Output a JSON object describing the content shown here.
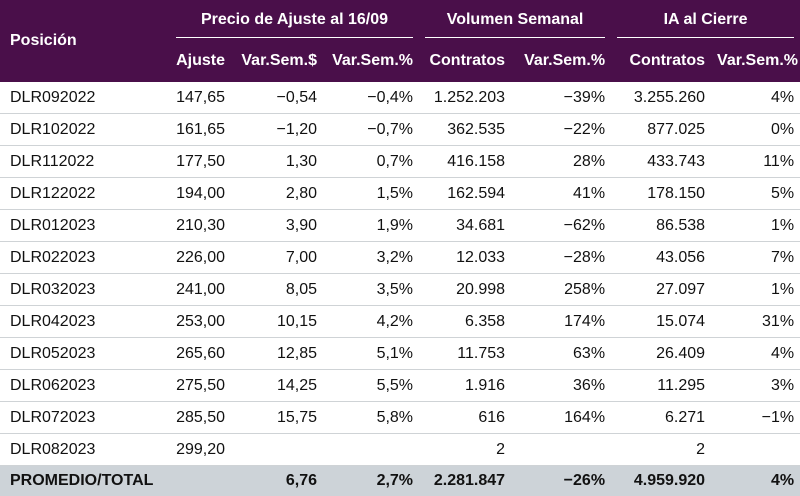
{
  "colors": {
    "header_bg": "#4a0f4a",
    "positive": "#1f9b1f",
    "negative": "#d8122a",
    "total_bg": "#cdd3d8"
  },
  "header": {
    "posicion": "Posición",
    "groups": {
      "precio": "Precio de Ajuste al 16/09",
      "volumen": "Volumen Semanal",
      "ia": "IA al Cierre"
    },
    "sub": {
      "ajuste": "Ajuste",
      "var_pesos": "Var.Sem.$",
      "var_pct_precio": "Var.Sem.%",
      "contratos_vol": "Contratos",
      "var_pct_vol": "Var.Sem.%",
      "contratos_ia": "Contratos",
      "var_pct_ia": "Var.Sem.%"
    }
  },
  "rows": [
    {
      "name": "DLR092022",
      "ajuste": "147,65",
      "var_pesos": "-0,54",
      "var_pct": "-0,4%",
      "vol_contratos": "1.252.203",
      "vol_var": "-39%",
      "ia_contratos": "3.255.260",
      "ia_var": "4%"
    },
    {
      "name": "DLR102022",
      "ajuste": "161,65",
      "var_pesos": "-1,20",
      "var_pct": "-0,7%",
      "vol_contratos": "362.535",
      "vol_var": "-22%",
      "ia_contratos": "877.025",
      "ia_var": "0%"
    },
    {
      "name": "DLR112022",
      "ajuste": "177,50",
      "var_pesos": "1,30",
      "var_pct": "0,7%",
      "vol_contratos": "416.158",
      "vol_var": "28%",
      "ia_contratos": "433.743",
      "ia_var": "11%"
    },
    {
      "name": "DLR122022",
      "ajuste": "194,00",
      "var_pesos": "2,80",
      "var_pct": "1,5%",
      "vol_contratos": "162.594",
      "vol_var": "41%",
      "ia_contratos": "178.150",
      "ia_var": "5%"
    },
    {
      "name": "DLR012023",
      "ajuste": "210,30",
      "var_pesos": "3,90",
      "var_pct": "1,9%",
      "vol_contratos": "34.681",
      "vol_var": "-62%",
      "ia_contratos": "86.538",
      "ia_var": "1%"
    },
    {
      "name": "DLR022023",
      "ajuste": "226,00",
      "var_pesos": "7,00",
      "var_pct": "3,2%",
      "vol_contratos": "12.033",
      "vol_var": "-28%",
      "ia_contratos": "43.056",
      "ia_var": "7%"
    },
    {
      "name": "DLR032023",
      "ajuste": "241,00",
      "var_pesos": "8,05",
      "var_pct": "3,5%",
      "vol_contratos": "20.998",
      "vol_var": "258%",
      "ia_contratos": "27.097",
      "ia_var": "1%"
    },
    {
      "name": "DLR042023",
      "ajuste": "253,00",
      "var_pesos": "10,15",
      "var_pct": "4,2%",
      "vol_contratos": "6.358",
      "vol_var": "174%",
      "ia_contratos": "15.074",
      "ia_var": "31%"
    },
    {
      "name": "DLR052023",
      "ajuste": "265,60",
      "var_pesos": "12,85",
      "var_pct": "5,1%",
      "vol_contratos": "11.753",
      "vol_var": "63%",
      "ia_contratos": "26.409",
      "ia_var": "4%"
    },
    {
      "name": "DLR062023",
      "ajuste": "275,50",
      "var_pesos": "14,25",
      "var_pct": "5,5%",
      "vol_contratos": "1.916",
      "vol_var": "36%",
      "ia_contratos": "11.295",
      "ia_var": "3%"
    },
    {
      "name": "DLR072023",
      "ajuste": "285,50",
      "var_pesos": "15,75",
      "var_pct": "5,8%",
      "vol_contratos": "616",
      "vol_var": "164%",
      "ia_contratos": "6.271",
      "ia_var": "-1%"
    },
    {
      "name": "DLR082023",
      "ajuste": "299,20",
      "var_pesos": "",
      "var_pct": "",
      "vol_contratos": "2",
      "vol_var": "",
      "ia_contratos": "2",
      "ia_var": ""
    }
  ],
  "total": {
    "label": "PROMEDIO/TOTAL",
    "ajuste": "",
    "var_pesos": "6,76",
    "var_pct": "2,7%",
    "vol_contratos": "2.281.847",
    "vol_var": "-26%",
    "ia_contratos": "4.959.920",
    "ia_var": "4%"
  }
}
